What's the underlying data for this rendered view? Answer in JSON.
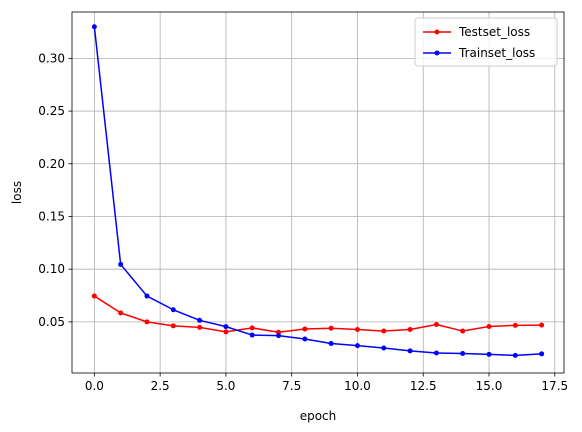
{
  "chart_data": {
    "type": "line",
    "title": "",
    "xlabel": "epoch",
    "ylabel": "loss",
    "xlim": [
      -0.85,
      17.85
    ],
    "ylim": [
      0.0015,
      0.344
    ],
    "xticks": [
      0.0,
      2.5,
      5.0,
      7.5,
      10.0,
      12.5,
      15.0,
      17.5
    ],
    "xtick_labels": [
      "0.0",
      "2.5",
      "5.0",
      "7.5",
      "10.0",
      "12.5",
      "15.0",
      "17.5"
    ],
    "yticks": [
      0.05,
      0.1,
      0.15,
      0.2,
      0.25,
      0.3
    ],
    "ytick_labels": [
      "0.05",
      "0.10",
      "0.15",
      "0.20",
      "0.25",
      "0.30"
    ],
    "grid": true,
    "legend_position": "top-right",
    "x": [
      0,
      1,
      2,
      3,
      4,
      5,
      6,
      7,
      8,
      9,
      10,
      11,
      12,
      13,
      14,
      15,
      16,
      17
    ],
    "series": [
      {
        "name": "Testset_loss",
        "color": "#ff0000",
        "marker": "dot",
        "values": [
          0.0745,
          0.0585,
          0.05,
          0.0462,
          0.0448,
          0.0405,
          0.0443,
          0.0402,
          0.0432,
          0.044,
          0.0428,
          0.0413,
          0.0428,
          0.0475,
          0.0413,
          0.0456,
          0.0467,
          0.0469
        ]
      },
      {
        "name": "Trainset_loss",
        "color": "#0000ff",
        "marker": "dot",
        "values": [
          0.33,
          0.1045,
          0.0745,
          0.0615,
          0.0515,
          0.0455,
          0.0375,
          0.037,
          0.0338,
          0.0295,
          0.0275,
          0.0252,
          0.0225,
          0.0205,
          0.02,
          0.0192,
          0.0182,
          0.0197
        ]
      }
    ]
  }
}
